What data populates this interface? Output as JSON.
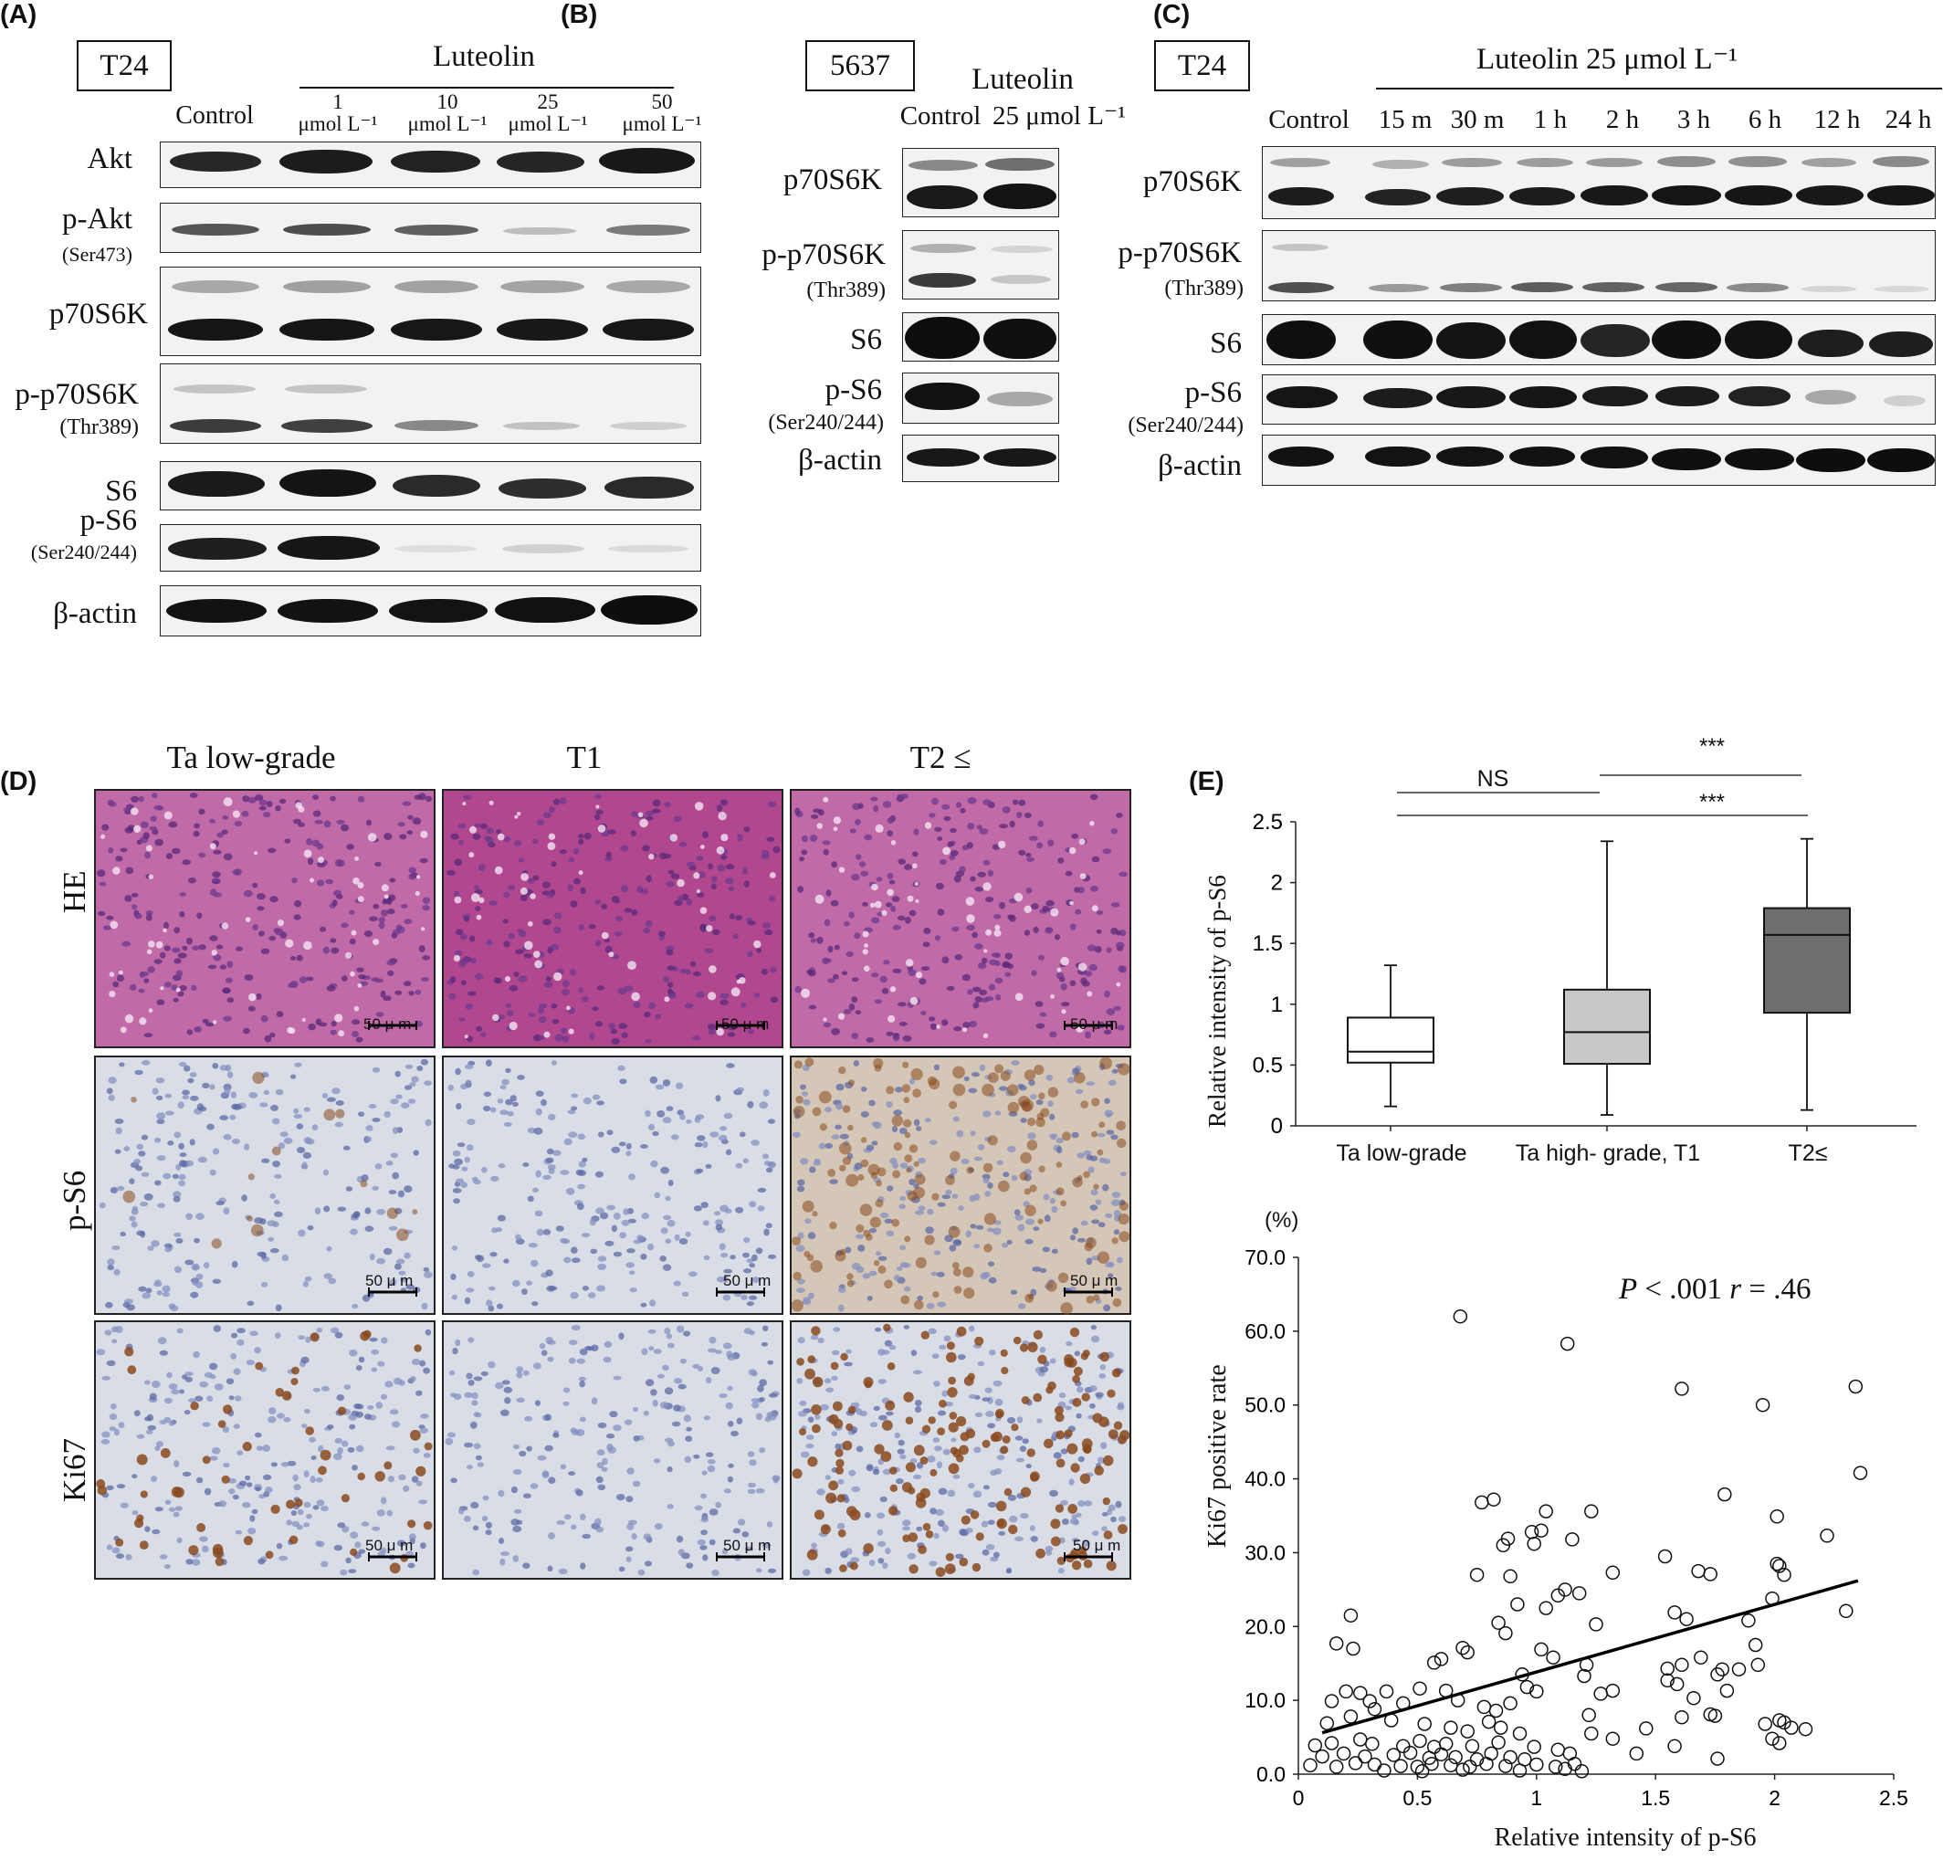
{
  "panel_labels": {
    "A": "(A)",
    "B": "(B)",
    "C": "(C)",
    "D": "(D)",
    "E": "(E)"
  },
  "panelA": {
    "cell_line": "T24",
    "treatment": "Luteolin",
    "lanes": [
      "Control",
      "1\nμmol L⁻¹",
      "10\nμmol L⁻¹",
      "25\nμmol L⁻¹",
      "50\nμmol L⁻¹"
    ],
    "proteins": [
      "Akt",
      "p-Akt",
      "(Ser473)",
      "p70S6K",
      "p-p70S6K",
      "(Thr389)",
      "S6",
      "p-S6",
      "(Ser240/244)",
      "β-actin"
    ]
  },
  "panelB": {
    "cell_line": "5637",
    "treatment": "Luteolin",
    "lanes": [
      "Control",
      "25 μmol L⁻¹"
    ],
    "proteins": [
      "p70S6K",
      "p-p70S6K",
      "(Thr389)",
      "S6",
      "p-S6",
      "(Ser240/244)",
      "β-actin"
    ]
  },
  "panelC": {
    "cell_line": "T24",
    "treatment": "Luteolin 25 μmol L⁻¹",
    "lanes": [
      "Control",
      "15 m",
      "30 m",
      "1 h",
      "2 h",
      "3 h",
      "6 h",
      "12 h",
      "24 h"
    ],
    "proteins": [
      "p70S6K",
      "p-p70S6K",
      "(Thr389)",
      "S6",
      "p-S6",
      "(Ser240/244)",
      "β-actin"
    ]
  },
  "panelD": {
    "columns": [
      "Ta low-grade",
      "T1",
      "T2 ≤"
    ],
    "rows": [
      "HE",
      "p-S6",
      "Ki67"
    ],
    "scale_bar": "50 μ m",
    "stain_colors": {
      "HE": "#b8509a",
      "ihc_background": "#d9dde6",
      "nuclei": "#5d6aa6",
      "positive": "#8a4a1e"
    }
  },
  "chart_data": [
    {
      "type": "box",
      "title": "",
      "ylabel": "Relative intensity of p-S6",
      "xlabel": "",
      "ylim": [
        0,
        2.5
      ],
      "yticks": [
        "0",
        "0.5",
        "1",
        "1.5",
        "2",
        "2.5"
      ],
      "categories": [
        "Ta low-grade",
        "Ta high- grade, T1",
        "T2≤"
      ],
      "boxes": [
        {
          "min": 0.16,
          "q1": 0.52,
          "median": 0.61,
          "q3": 0.89,
          "max": 1.32,
          "color": "#ffffff"
        },
        {
          "min": 0.09,
          "q1": 0.51,
          "median": 0.77,
          "q3": 1.12,
          "max": 2.34,
          "color": "#c8c8c8"
        },
        {
          "min": 0.13,
          "q1": 0.93,
          "median": 1.57,
          "q3": 1.79,
          "max": 2.36,
          "color": "#6e6e6e"
        }
      ],
      "annotations": [
        {
          "from": "Ta low-grade",
          "to": "Ta high- grade, T1",
          "text": "NS"
        },
        {
          "from": "Ta high- grade, T1",
          "to": "T2≤",
          "text": "***"
        },
        {
          "from": "Ta low-grade",
          "to": "T2≤",
          "text": "***"
        }
      ]
    },
    {
      "type": "scatter",
      "title": "",
      "xlabel": "Relative intensity of p-S6",
      "ylabel": "Ki67 positive rate",
      "y_unit": "(%)",
      "xlim": [
        0,
        2.5
      ],
      "ylim": [
        0,
        70
      ],
      "xticks": [
        "0",
        "0.5",
        "1",
        "1.5",
        "2",
        "2.5"
      ],
      "yticks": [
        "0.0",
        "10.0",
        "20.0",
        "30.0",
        "40.0",
        "50.0",
        "60.0",
        "70.0"
      ],
      "annotation_p": "P",
      "annotation_mid": " < .001 ",
      "annotation_r": "r",
      "annotation_end": " = .46",
      "trendline": {
        "x": [
          0.1,
          2.35
        ],
        "y": [
          5.6,
          26.2
        ]
      },
      "points": [
        [
          0.68,
          62.0
        ],
        [
          1.13,
          58.3
        ],
        [
          1.61,
          52.2
        ],
        [
          1.95,
          50.0
        ],
        [
          2.34,
          52.5
        ],
        [
          2.36,
          40.8
        ],
        [
          1.79,
          37.9
        ],
        [
          0.77,
          36.8
        ],
        [
          0.82,
          37.2
        ],
        [
          1.04,
          35.6
        ],
        [
          1.23,
          35.6
        ],
        [
          2.01,
          34.9
        ],
        [
          2.22,
          32.3
        ],
        [
          1.02,
          33.0
        ],
        [
          0.88,
          31.9
        ],
        [
          0.98,
          32.8
        ],
        [
          1.15,
          31.8
        ],
        [
          0.86,
          31.0
        ],
        [
          0.99,
          31.2
        ],
        [
          1.54,
          29.5
        ],
        [
          2.01,
          28.5
        ],
        [
          1.68,
          27.5
        ],
        [
          2.02,
          28.2
        ],
        [
          2.04,
          27.0
        ],
        [
          1.73,
          27.1
        ],
        [
          2.3,
          22.1
        ],
        [
          1.99,
          23.8
        ],
        [
          1.32,
          27.3
        ],
        [
          0.89,
          26.8
        ],
        [
          0.75,
          27.0
        ],
        [
          1.12,
          25.0
        ],
        [
          1.18,
          24.5
        ],
        [
          1.09,
          24.2
        ],
        [
          0.92,
          23.0
        ],
        [
          1.04,
          22.5
        ],
        [
          1.58,
          21.9
        ],
        [
          1.63,
          21.0
        ],
        [
          1.89,
          20.8
        ],
        [
          1.25,
          20.3
        ],
        [
          0.84,
          20.5
        ],
        [
          0.22,
          21.5
        ],
        [
          0.16,
          17.7
        ],
        [
          0.23,
          17.0
        ],
        [
          0.87,
          19.1
        ],
        [
          0.69,
          17.1
        ],
        [
          0.71,
          16.5
        ],
        [
          1.02,
          16.9
        ],
        [
          1.07,
          15.8
        ],
        [
          1.32,
          11.3
        ],
        [
          0.57,
          15.1
        ],
        [
          0.6,
          15.6
        ],
        [
          1.55,
          14.3
        ],
        [
          1.61,
          14.8
        ],
        [
          1.78,
          14.2
        ],
        [
          1.92,
          17.5
        ],
        [
          1.93,
          14.8
        ],
        [
          1.69,
          15.8
        ],
        [
          1.85,
          14.2
        ],
        [
          0.94,
          13.5
        ],
        [
          1.2,
          13.3
        ],
        [
          1.21,
          14.8
        ],
        [
          1.55,
          12.7
        ],
        [
          0.51,
          11.6
        ],
        [
          0.62,
          11.3
        ],
        [
          0.96,
          11.8
        ],
        [
          1.0,
          11.2
        ],
        [
          1.27,
          10.9
        ],
        [
          0.2,
          11.2
        ],
        [
          0.26,
          11.0
        ],
        [
          0.37,
          11.2
        ],
        [
          0.3,
          9.9
        ],
        [
          1.59,
          12.2
        ],
        [
          1.76,
          13.5
        ],
        [
          1.8,
          11.3
        ],
        [
          1.66,
          10.3
        ],
        [
          0.14,
          9.9
        ],
        [
          0.32,
          8.8
        ],
        [
          0.44,
          9.6
        ],
        [
          0.67,
          10.0
        ],
        [
          0.78,
          9.1
        ],
        [
          0.83,
          8.6
        ],
        [
          0.89,
          9.6
        ],
        [
          1.22,
          8.0
        ],
        [
          1.73,
          8.1
        ],
        [
          1.75,
          7.9
        ],
        [
          1.61,
          7.7
        ],
        [
          1.46,
          6.2
        ],
        [
          2.02,
          7.3
        ],
        [
          2.04,
          7.0
        ],
        [
          1.96,
          6.8
        ],
        [
          2.07,
          6.3
        ],
        [
          2.13,
          6.1
        ],
        [
          0.12,
          6.9
        ],
        [
          0.22,
          7.8
        ],
        [
          0.39,
          7.3
        ],
        [
          0.53,
          6.8
        ],
        [
          0.64,
          6.3
        ],
        [
          0.71,
          5.8
        ],
        [
          0.8,
          7.1
        ],
        [
          0.85,
          6.3
        ],
        [
          0.93,
          5.5
        ],
        [
          1.23,
          5.5
        ],
        [
          1.32,
          4.8
        ],
        [
          0.07,
          3.9
        ],
        [
          0.14,
          4.2
        ],
        [
          0.26,
          4.7
        ],
        [
          0.31,
          4.1
        ],
        [
          0.44,
          3.8
        ],
        [
          0.51,
          4.5
        ],
        [
          0.57,
          3.7
        ],
        [
          0.62,
          4.1
        ],
        [
          0.73,
          3.8
        ],
        [
          0.84,
          4.3
        ],
        [
          0.99,
          3.7
        ],
        [
          1.09,
          3.3
        ],
        [
          1.14,
          2.8
        ],
        [
          1.58,
          3.8
        ],
        [
          1.99,
          4.8
        ],
        [
          2.02,
          4.2
        ],
        [
          0.1,
          2.4
        ],
        [
          0.19,
          2.8
        ],
        [
          0.28,
          2.4
        ],
        [
          0.4,
          2.6
        ],
        [
          0.47,
          2.9
        ],
        [
          0.55,
          2.2
        ],
        [
          0.6,
          2.7
        ],
        [
          0.66,
          2.3
        ],
        [
          0.75,
          2.0
        ],
        [
          0.81,
          2.8
        ],
        [
          0.89,
          2.3
        ],
        [
          0.95,
          2.0
        ],
        [
          1.16,
          1.4
        ],
        [
          1.42,
          2.8
        ],
        [
          1.76,
          2.1
        ],
        [
          0.05,
          1.2
        ],
        [
          0.16,
          1.0
        ],
        [
          0.24,
          1.5
        ],
        [
          0.32,
          1.3
        ],
        [
          0.43,
          1.1
        ],
        [
          0.5,
          1.0
        ],
        [
          0.56,
          1.4
        ],
        [
          0.64,
          1.2
        ],
        [
          0.72,
          1.0
        ],
        [
          0.79,
          1.4
        ],
        [
          0.87,
          1.1
        ],
        [
          1.0,
          1.3
        ],
        [
          1.08,
          1.0
        ],
        [
          1.12,
          0.7
        ],
        [
          0.36,
          0.5
        ],
        [
          0.52,
          0.4
        ],
        [
          0.69,
          0.6
        ],
        [
          0.93,
          0.5
        ],
        [
          1.19,
          0.4
        ]
      ]
    }
  ]
}
